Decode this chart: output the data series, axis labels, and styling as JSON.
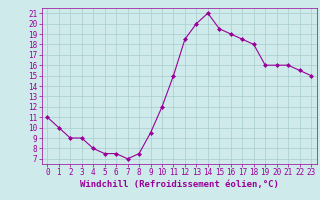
{
  "x": [
    0,
    1,
    2,
    3,
    4,
    5,
    6,
    7,
    8,
    9,
    10,
    11,
    12,
    13,
    14,
    15,
    16,
    17,
    18,
    19,
    20,
    21,
    22,
    23
  ],
  "y": [
    11,
    10,
    9,
    9,
    8,
    7.5,
    7.5,
    7,
    7.5,
    9.5,
    12,
    15,
    18.5,
    20,
    21,
    19.5,
    19,
    18.5,
    18,
    16,
    16,
    16,
    15.5,
    15
  ],
  "xlabel": "Windchill (Refroidissement éolien,°C)",
  "line_color": "#990099",
  "marker": "D",
  "marker_size": 2,
  "bg_color": "#ceeaea",
  "grid_color": "#aacccc",
  "ylim": [
    6.5,
    21.5
  ],
  "xlim": [
    -0.5,
    23.5
  ],
  "yticks": [
    7,
    8,
    9,
    10,
    11,
    12,
    13,
    14,
    15,
    16,
    17,
    18,
    19,
    20,
    21
  ],
  "xticks": [
    0,
    1,
    2,
    3,
    4,
    5,
    6,
    7,
    8,
    9,
    10,
    11,
    12,
    13,
    14,
    15,
    16,
    17,
    18,
    19,
    20,
    21,
    22,
    23
  ],
  "tick_fontsize": 5.5,
  "xlabel_fontsize": 6.5
}
